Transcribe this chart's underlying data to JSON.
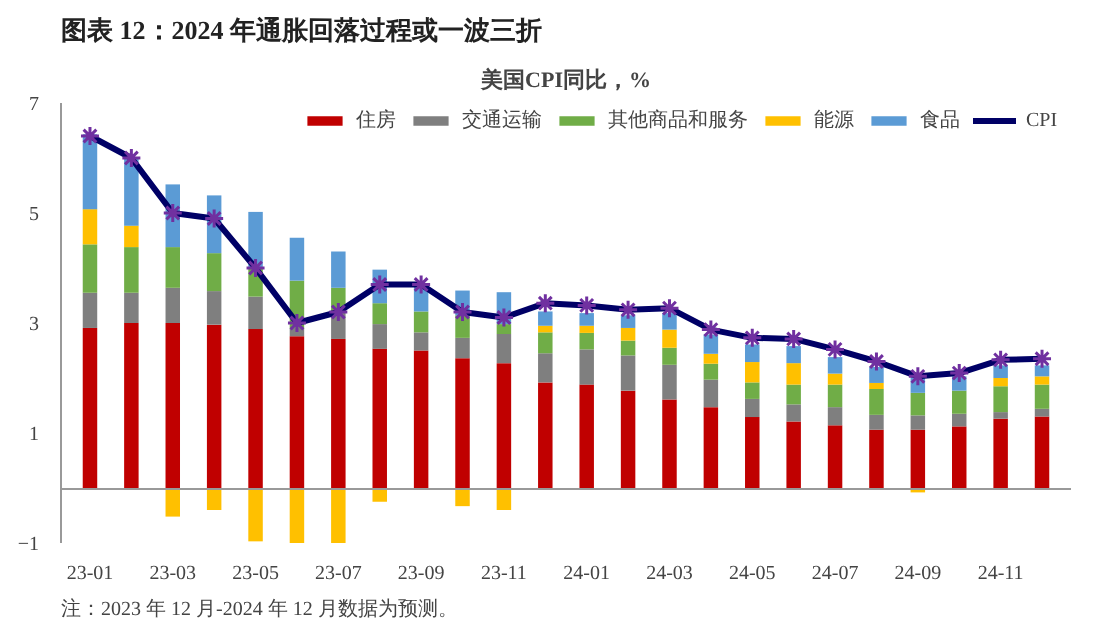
{
  "chart_data": {
    "type": "bar",
    "stacked": true,
    "title": "图表 12：2024 年通胀回落过程或一波三折",
    "subtitle": "美国CPI同比，%",
    "annotations": [
      "注：2023 年 12 月-2024 年 12 月数据为预测。"
    ],
    "categories": [
      "23-01",
      null,
      "23-03",
      null,
      "23-05",
      null,
      "23-07",
      null,
      "23-09",
      null,
      "23-11",
      null,
      "24-01",
      null,
      "24-03",
      null,
      "24-05",
      null,
      "24-07",
      null,
      "24-09",
      null,
      "24-11",
      null
    ],
    "series": [
      {
        "name": "住房",
        "color": "#c00000",
        "values": [
          2.91,
          3.0,
          3.0,
          2.97,
          2.89,
          2.76,
          2.71,
          2.53,
          2.5,
          2.36,
          2.27,
          1.92,
          1.88,
          1.77,
          1.61,
          1.47,
          1.29,
          1.21,
          1.14,
          1.06,
          1.06,
          1.12,
          1.26,
          1.3
        ]
      },
      {
        "name": "交通运输",
        "color": "#7f7f7f",
        "values": [
          0.64,
          0.55,
          0.64,
          0.61,
          0.59,
          0.15,
          0.5,
          0.45,
          0.33,
          0.37,
          0.53,
          0.53,
          0.64,
          0.64,
          0.63,
          0.5,
          0.33,
          0.31,
          0.33,
          0.27,
          0.26,
          0.23,
          0.12,
          0.14
        ]
      },
      {
        "name": "其他商品和服务",
        "color": "#70ad47",
        "values": [
          0.88,
          0.83,
          0.74,
          0.69,
          0.52,
          0.86,
          0.43,
          0.38,
          0.38,
          0.41,
          0.18,
          0.38,
          0.3,
          0.27,
          0.31,
          0.29,
          0.3,
          0.36,
          0.41,
          0.47,
          0.41,
          0.42,
          0.47,
          0.44
        ]
      },
      {
        "name": "能源",
        "color": "#ffc000",
        "values": [
          0.64,
          0.39,
          -0.52,
          -0.4,
          -0.97,
          -1.0,
          -1.0,
          -0.25,
          null,
          -0.33,
          -0.4,
          0.12,
          0.13,
          0.23,
          0.33,
          0.18,
          0.37,
          0.39,
          0.2,
          0.11,
          -0.08,
          null,
          0.15,
          0.15
        ]
      },
      {
        "name": "食品",
        "color": "#5b9bd5",
        "values": [
          1.36,
          1.21,
          1.14,
          1.05,
          1.02,
          0.78,
          0.66,
          0.61,
          0.46,
          0.45,
          0.58,
          0.26,
          0.23,
          0.23,
          0.3,
          0.35,
          0.32,
          0.31,
          0.3,
          0.29,
          0.3,
          0.26,
          0.23,
          0.2
        ]
      },
      {
        "name": "CPI",
        "type": "line",
        "color": "#000066",
        "marker": "cross",
        "values": [
          6.4,
          6.0,
          5.0,
          4.9,
          4.0,
          3.0,
          3.2,
          3.7,
          3.7,
          3.2,
          3.1,
          3.36,
          3.32,
          3.24,
          3.27,
          2.88,
          2.73,
          2.71,
          2.52,
          2.3,
          2.03,
          2.09,
          2.33,
          2.35
        ]
      }
    ],
    "ylim": [
      -1,
      7
    ],
    "yticks": [
      -1,
      1,
      3,
      5,
      7
    ],
    "grid": false,
    "legend": "top"
  }
}
